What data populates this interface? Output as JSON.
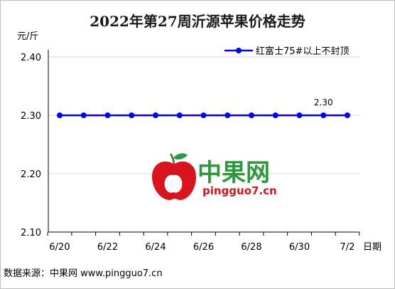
{
  "chart_data": {
    "type": "line",
    "title": "2022年第27周沂源苹果价格走势",
    "ylabel": "元/斤",
    "xlabel": "日期",
    "ylim": [
      2.1,
      2.4
    ],
    "yticks": [
      "2.10",
      "2.20",
      "2.30",
      "2.40"
    ],
    "x": [
      "6/20",
      "6/21",
      "6/22",
      "6/23",
      "6/24",
      "6/25",
      "6/26",
      "6/27",
      "6/28",
      "6/29",
      "6/30",
      "7/1",
      "7/2"
    ],
    "xtick_labels": [
      "6/20",
      "6/22",
      "6/24",
      "6/26",
      "6/28",
      "6/30",
      "7/2"
    ],
    "series": [
      {
        "name": "红富士75#以上不封顶",
        "values": [
          2.3,
          2.3,
          2.3,
          2.3,
          2.3,
          2.3,
          2.3,
          2.3,
          2.3,
          2.3,
          2.3,
          2.3,
          2.3
        ]
      }
    ],
    "annotations": [
      {
        "x": "7/1",
        "text": "2.30"
      }
    ],
    "grid": true,
    "legend": "top-right",
    "colors": {
      "series": "#0000ff",
      "grid": "#d9d9d9",
      "axis": "#000000"
    }
  },
  "watermark": {
    "text": "中果网",
    "url": "pingguo7.cn"
  },
  "footer": {
    "source": "数据来源：中果网 www.pingguo7.cn"
  }
}
